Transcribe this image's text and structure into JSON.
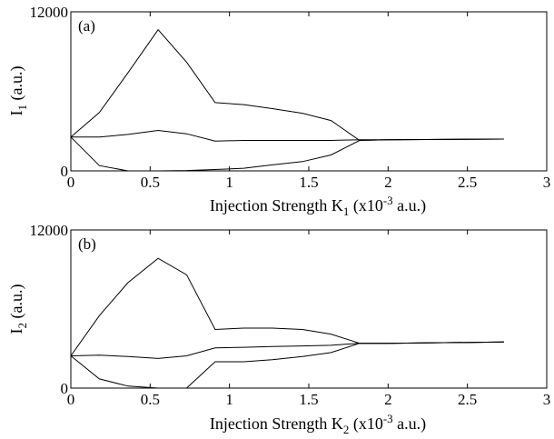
{
  "chart_data": [
    {
      "type": "line",
      "panel_label": "(a)",
      "xlim": [
        0,
        3
      ],
      "ylim": [
        0,
        12000
      ],
      "x_ticks": [
        "0",
        "0.5",
        "1",
        "1.5",
        "2",
        "2.5",
        "3"
      ],
      "y_ticks": [
        "0",
        "12000"
      ],
      "ylabel": {
        "base": "I",
        "sub": "1",
        "rest": " (a.u.)"
      },
      "xlabel": {
        "pre": "Injection Strength K",
        "sub": "1",
        "mid": " (x10",
        "sup": "-3",
        "post": " a.u.)"
      },
      "grid": false,
      "series": [
        {
          "x": [
            0,
            0.18,
            0.36,
            0.55,
            0.73,
            0.91,
            1.09,
            1.27,
            1.46,
            1.64,
            1.82,
            2.0,
            2.73
          ],
          "y": [
            2550,
            4400,
            7400,
            10650,
            8200,
            5150,
            5000,
            4700,
            4350,
            3800,
            2300,
            2350,
            2400
          ]
        },
        {
          "x": [
            0,
            0.18,
            0.36,
            0.55,
            0.73,
            0.91,
            1.09,
            1.27,
            1.46,
            1.64,
            1.82,
            2.0,
            2.73
          ],
          "y": [
            2550,
            2550,
            2750,
            3050,
            2800,
            2250,
            2300,
            2300,
            2300,
            2300,
            2350,
            2350,
            2400
          ]
        },
        {
          "x": [
            0,
            0.18,
            0.36,
            0.55,
            0.73,
            0.91,
            1.09,
            1.27,
            1.46,
            1.64,
            1.82,
            2.0,
            2.73
          ],
          "y": [
            2550,
            400,
            0,
            0,
            30,
            100,
            200,
            450,
            700,
            1200,
            2300,
            2350,
            2400
          ]
        }
      ]
    },
    {
      "type": "line",
      "panel_label": "(b)",
      "xlim": [
        0,
        3
      ],
      "ylim": [
        0,
        12000
      ],
      "x_ticks": [
        "0",
        "0.5",
        "1",
        "1.5",
        "2",
        "2.5",
        "3"
      ],
      "y_ticks": [
        "0",
        "12000"
      ],
      "ylabel": {
        "base": "I",
        "sub": "2",
        "rest": " (a.u.)"
      },
      "xlabel": {
        "pre": "Injection Strength K",
        "sub": "2",
        "mid": " (x10",
        "sup": "-3",
        "post": " a.u.)"
      },
      "grid": false,
      "series": [
        {
          "x": [
            0,
            0.18,
            0.36,
            0.55,
            0.73,
            0.91,
            1.09,
            1.27,
            1.46,
            1.64,
            1.82,
            2.0,
            2.73
          ],
          "y": [
            2450,
            5500,
            8000,
            9850,
            8600,
            4450,
            4550,
            4550,
            4450,
            4100,
            3400,
            3400,
            3500
          ]
        },
        {
          "x": [
            0,
            0.18,
            0.36,
            0.55,
            0.73,
            0.91,
            1.09,
            1.27,
            1.46,
            1.64,
            1.82,
            2.0,
            2.73
          ],
          "y": [
            2450,
            2500,
            2400,
            2250,
            2450,
            3050,
            3100,
            3150,
            3200,
            3250,
            3400,
            3400,
            3500
          ]
        },
        {
          "x": [
            0,
            0.18,
            0.36,
            0.55,
            0.73,
            0.73,
            0.91,
            1.09,
            1.27,
            1.46,
            1.64,
            1.82,
            2.0,
            2.73
          ],
          "y": [
            2450,
            700,
            150,
            0,
            0,
            0,
            2000,
            2000,
            2150,
            2400,
            2700,
            3400,
            3400,
            3500
          ]
        }
      ]
    }
  ]
}
